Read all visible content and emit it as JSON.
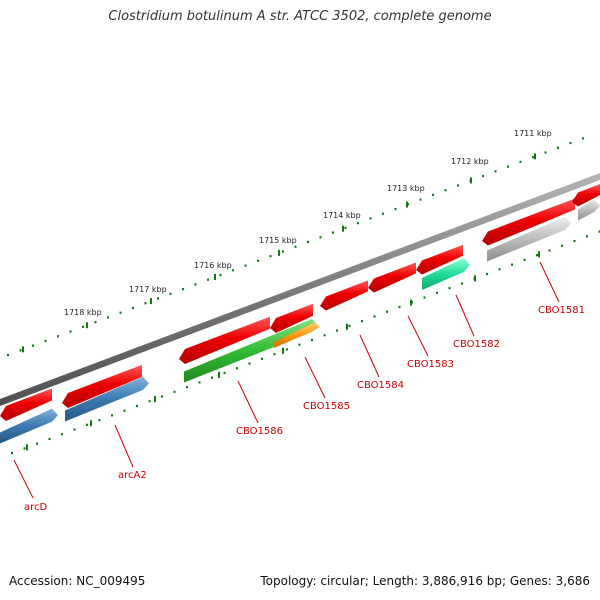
{
  "title": "Clostridium botulinum A str. ATCC 3502, complete genome",
  "footer": {
    "accession": "Accession: NC_009495",
    "topology": "Topology: circular; Length: 3,886,916 bp; Genes: 3,686"
  },
  "colors": {
    "forward_gene": "#ee0000",
    "backbone": "#7a7a7a",
    "label": "#cc0000",
    "ruler_tick": "#117711",
    "arc_gene": "#3a7ab0",
    "cbo1582": "#22dd99",
    "cbo1585": "#ff9911",
    "cbo1586": "#33bb33",
    "cbo1581": "#bbbbbb"
  },
  "scale_labels": [
    "1711 kbp",
    "1712 kbp",
    "1713 kbp",
    "1714 kbp",
    "1715 kbp",
    "1716 kbp",
    "1717 kbp",
    "1718 kbp"
  ],
  "gene_labels": [
    "CBO1581",
    "CBO1582",
    "CBO1583",
    "CBO1584",
    "CBO1585",
    "CBO1586",
    "arcA2",
    "arcD"
  ]
}
